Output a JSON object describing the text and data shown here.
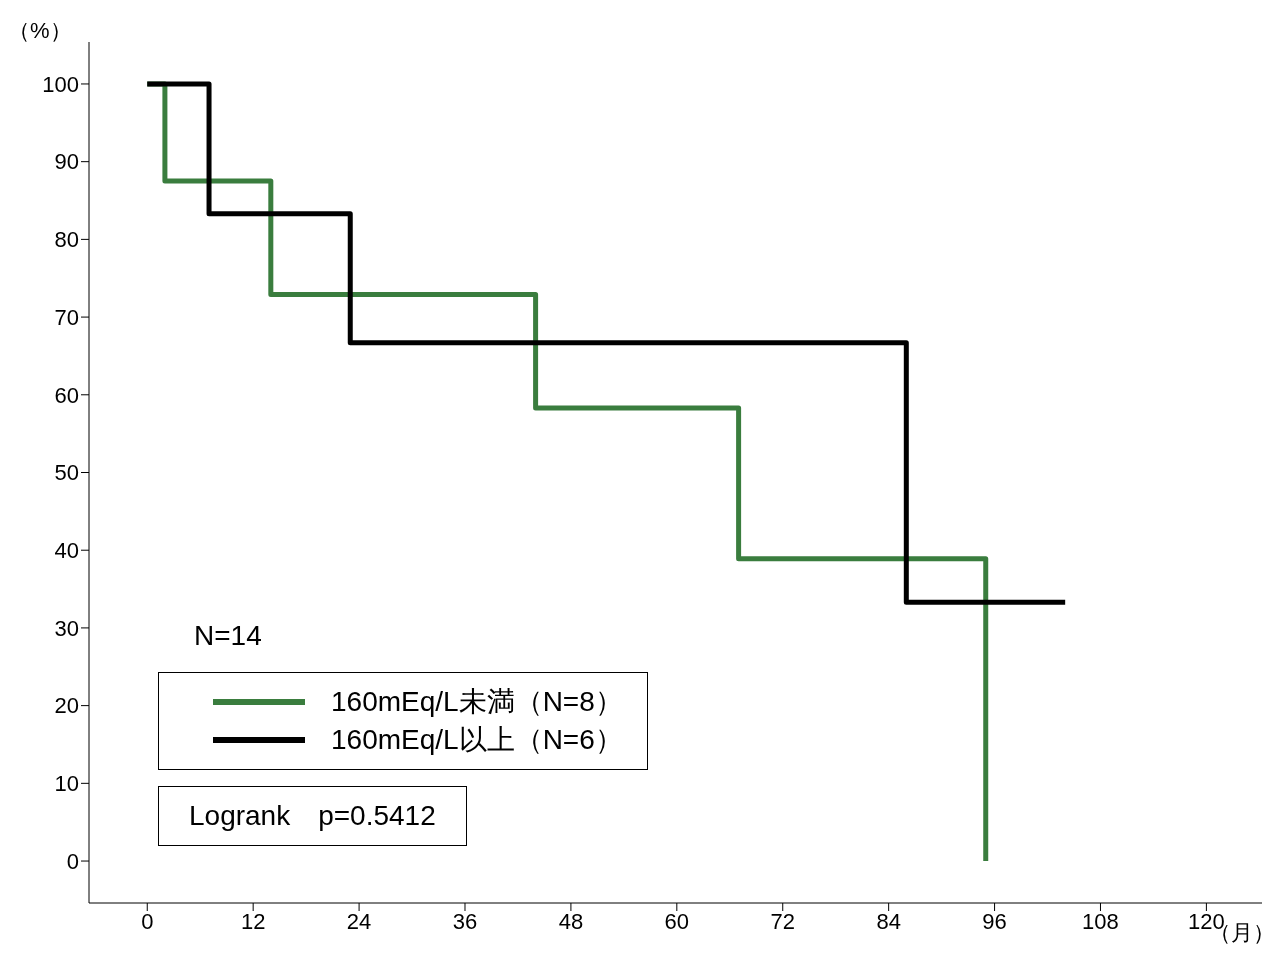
{
  "chart_data": {
    "type": "step",
    "xlabel": "（月）",
    "ylabel": "（%）",
    "xlim": [
      -6.6,
      126.3
    ],
    "xticks": [
      0,
      12,
      24,
      36,
      48,
      60,
      72,
      84,
      96,
      108,
      120
    ],
    "ylim": [
      -5.4,
      105.4
    ],
    "yticks": [
      0,
      10,
      20,
      30,
      40,
      50,
      60,
      70,
      80,
      90,
      100
    ],
    "grid": false,
    "legend": "bottom left",
    "marker": "none",
    "line_style": "solid",
    "annotations": [
      "N=14",
      "Logrank　p=0.5412"
    ],
    "series": [
      {
        "name": "160mEq/L未満（N=8）",
        "color": "#3a7d3e",
        "x": [
          0,
          2,
          14,
          44,
          67,
          95
        ],
        "values": [
          100,
          87.5,
          72.9,
          58.3,
          38.9,
          0
        ]
      },
      {
        "name": "160mEq/L以上（N=6）",
        "color": "#000000",
        "x": [
          0,
          7,
          23,
          86,
          104
        ],
        "values": [
          100,
          83.3,
          66.7,
          33.3,
          33.3
        ]
      }
    ]
  }
}
